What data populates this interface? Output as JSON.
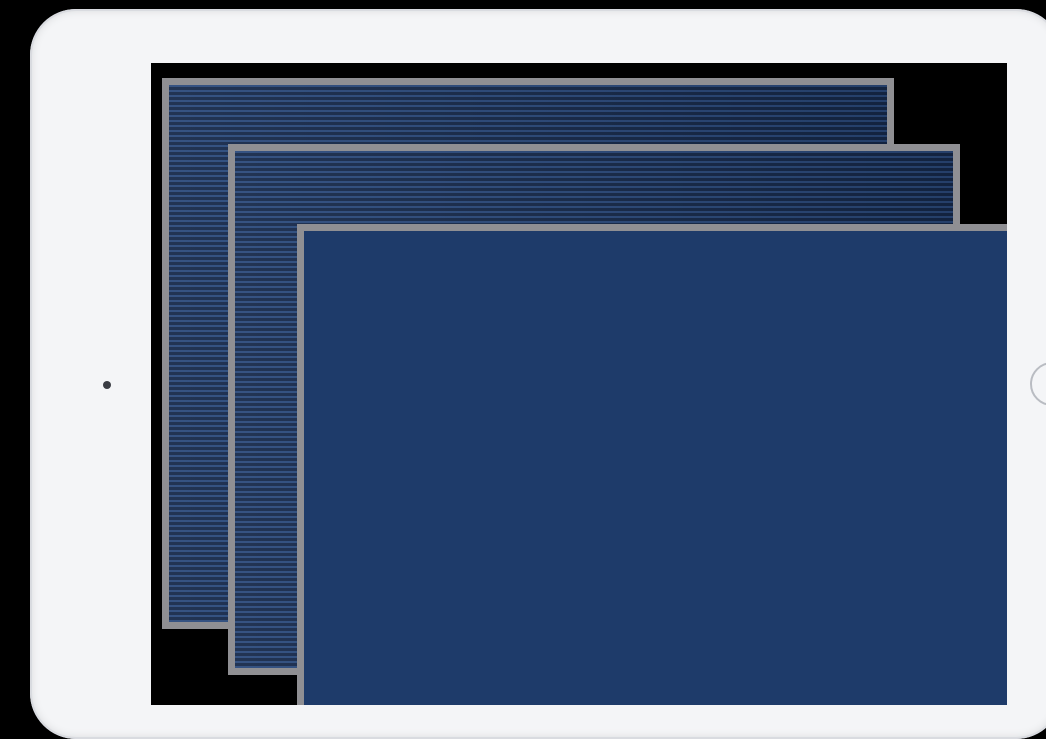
{
  "device": {
    "type": "tablet",
    "orientation": "landscape",
    "frame_color": "#f4f5f7",
    "home_button_icon": "home-button-ring",
    "camera_icon": "front-camera-dot"
  },
  "screen": {
    "background": "#000000",
    "cards": [
      {
        "name": "back-card",
        "style": "striped",
        "fill": "#2b4a7c",
        "border": "#8f8f93"
      },
      {
        "name": "middle-card",
        "style": "striped",
        "fill": "#2b4a7c",
        "border": "#8f8f93"
      },
      {
        "name": "front-card",
        "style": "solid",
        "fill": "#1e3b6a",
        "border": "#8f8f93"
      }
    ]
  }
}
